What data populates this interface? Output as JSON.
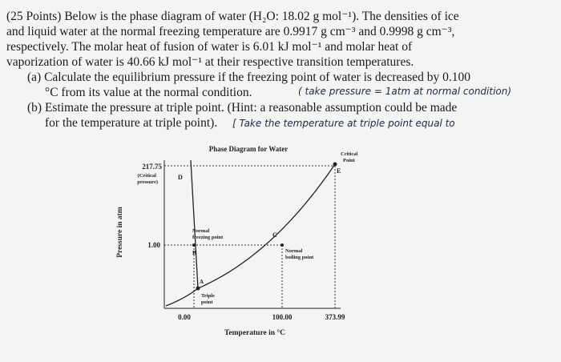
{
  "problem": {
    "intro": [
      "(25 Points) Below is the phase diagram of water (H₂O: 18.02 g mol⁻¹). The densities of ice",
      "and liquid water at the normal freezing temperature are 0.9917 g cm⁻³ and 0.9998 g cm⁻³,",
      "respectively. The molar heat of fusion of water is 6.01 kJ mol⁻¹ and molar heat of",
      "vaporization of water is 40.66 kJ mol⁻¹ at their respective transition temperatures."
    ],
    "parts": [
      {
        "lines": [
          "(a) Calculate the equilibrium pressure if the freezing point of water is decreased by 0.100",
          "°C from its value at the normal condition."
        ],
        "handwritten": "( take pressure = 1atm at normal condition)"
      },
      {
        "lines": [
          "(b) Estimate the pressure at triple point. (Hint: a reasonable assumption could be made",
          "for the temperature at triple point)."
        ],
        "handwritten": "[ Take the temperature at triple point equal to"
      }
    ]
  },
  "figure": {
    "title": "Phase Diagram for Water",
    "y_label": "Pressure in atm",
    "x_label": "Temperature in °C",
    "y_ticks": [
      "217.75",
      "(Critical",
      "pressure)",
      "1.00"
    ],
    "x_ticks": [
      "0.00",
      "100.00",
      "373.99"
    ],
    "points": {
      "A": "A",
      "B": "B",
      "C": "C",
      "D": "D",
      "E": "E"
    },
    "annotations": {
      "freezing": [
        "Normal",
        "freezing point"
      ],
      "boiling": [
        "Normal",
        "boiling point"
      ],
      "triple": [
        "Triple",
        "point"
      ],
      "critical": [
        "Critical",
        "Point"
      ]
    }
  }
}
